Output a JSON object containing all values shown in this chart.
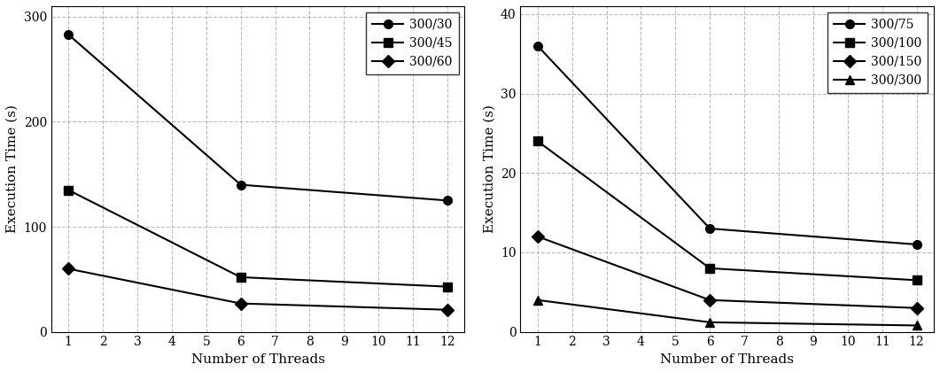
{
  "left": {
    "series": [
      {
        "label": "300/30",
        "marker": "o",
        "x": [
          1,
          6,
          12
        ],
        "y": [
          283,
          140,
          125
        ]
      },
      {
        "label": "300/45",
        "marker": "s",
        "x": [
          1,
          6,
          12
        ],
        "y": [
          135,
          52,
          43
        ]
      },
      {
        "label": "300/60",
        "marker": "D",
        "x": [
          1,
          6,
          12
        ],
        "y": [
          60,
          27,
          21
        ]
      }
    ],
    "ylabel": "Execution Time (s)",
    "xlabel": "Number of Threads",
    "ylim": [
      0,
      310
    ],
    "yticks": [
      0,
      100,
      200,
      300
    ],
    "xticks": [
      1,
      2,
      3,
      4,
      5,
      6,
      7,
      8,
      9,
      10,
      11,
      12
    ]
  },
  "right": {
    "series": [
      {
        "label": "300/75",
        "marker": "o",
        "x": [
          1,
          6,
          12
        ],
        "y": [
          36,
          13,
          11
        ]
      },
      {
        "label": "300/100",
        "marker": "s",
        "x": [
          1,
          6,
          12
        ],
        "y": [
          24,
          8,
          6.5
        ]
      },
      {
        "label": "300/150",
        "marker": "D",
        "x": [
          1,
          6,
          12
        ],
        "y": [
          12,
          4,
          3
        ]
      },
      {
        "label": "300/300",
        "marker": "^",
        "x": [
          1,
          6,
          12
        ],
        "y": [
          4,
          1.2,
          0.8
        ]
      }
    ],
    "ylabel": "Execution Time (s)",
    "xlabel": "Number of Threads",
    "ylim": [
      0,
      41
    ],
    "yticks": [
      0,
      10,
      20,
      30,
      40
    ],
    "xticks": [
      1,
      2,
      3,
      4,
      5,
      6,
      7,
      8,
      9,
      10,
      11,
      12
    ]
  },
  "line_color": "#000000",
  "grid_color": "#bbbbbb",
  "font_size": 11,
  "legend_font_size": 10,
  "marker_size": 7,
  "linewidth": 1.5
}
